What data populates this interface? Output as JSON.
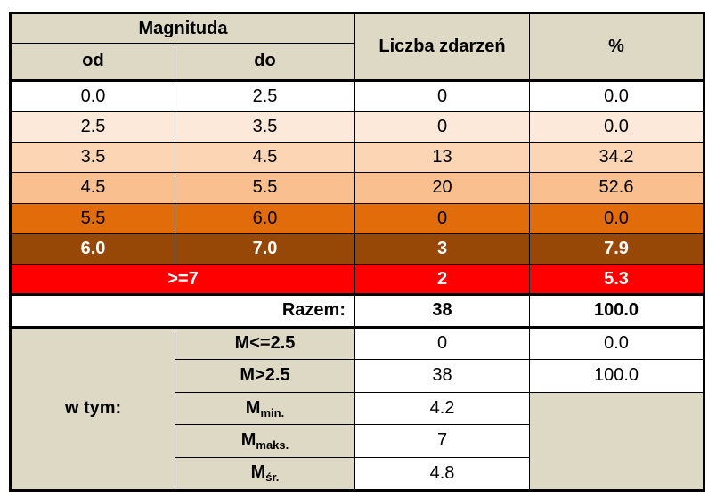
{
  "header": {
    "magnituda": "Magnituda",
    "od": "od",
    "do": "do",
    "liczba": "Liczba zdarzeń",
    "percent": "%"
  },
  "rows": [
    {
      "od": "0.0",
      "do": "2.5",
      "count": "0",
      "pct": "0.0"
    },
    {
      "od": "2.5",
      "do": "3.5",
      "count": "0",
      "pct": "0.0"
    },
    {
      "od": "3.5",
      "do": "4.5",
      "count": "13",
      "pct": "34.2"
    },
    {
      "od": "4.5",
      "do": "5.5",
      "count": "20",
      "pct": "52.6"
    },
    {
      "od": "5.5",
      "do": "6.0",
      "count": "0",
      "pct": "0.0"
    },
    {
      "od": "6.0",
      "do": "7.0",
      "count": "3",
      "pct": "7.9"
    }
  ],
  "over7": {
    "label": ">=7",
    "count": "2",
    "pct": "5.3"
  },
  "total": {
    "label": "Razem:",
    "count": "38",
    "pct": "100.0"
  },
  "wtym": {
    "label": "w tym:",
    "items": [
      {
        "name": "M<=2.5",
        "count": "0",
        "pct": "0.0"
      },
      {
        "name": "M>2.5",
        "count": "38",
        "pct": "100.0"
      },
      {
        "base": "M",
        "sub": "min.",
        "count": "4.2"
      },
      {
        "base": "M",
        "sub": "maks.",
        "count": "7"
      },
      {
        "base": "M",
        "sub": "śr.",
        "count": "4.8"
      }
    ]
  },
  "colors": {
    "header_bg": "#ddd9c4",
    "band_1": "#fde9d9",
    "band_2": "#fcd5b4",
    "band_3": "#fabf8f",
    "band_4": "#e26b0a",
    "band_5": "#974706",
    "band_over7": "#ff0000"
  }
}
